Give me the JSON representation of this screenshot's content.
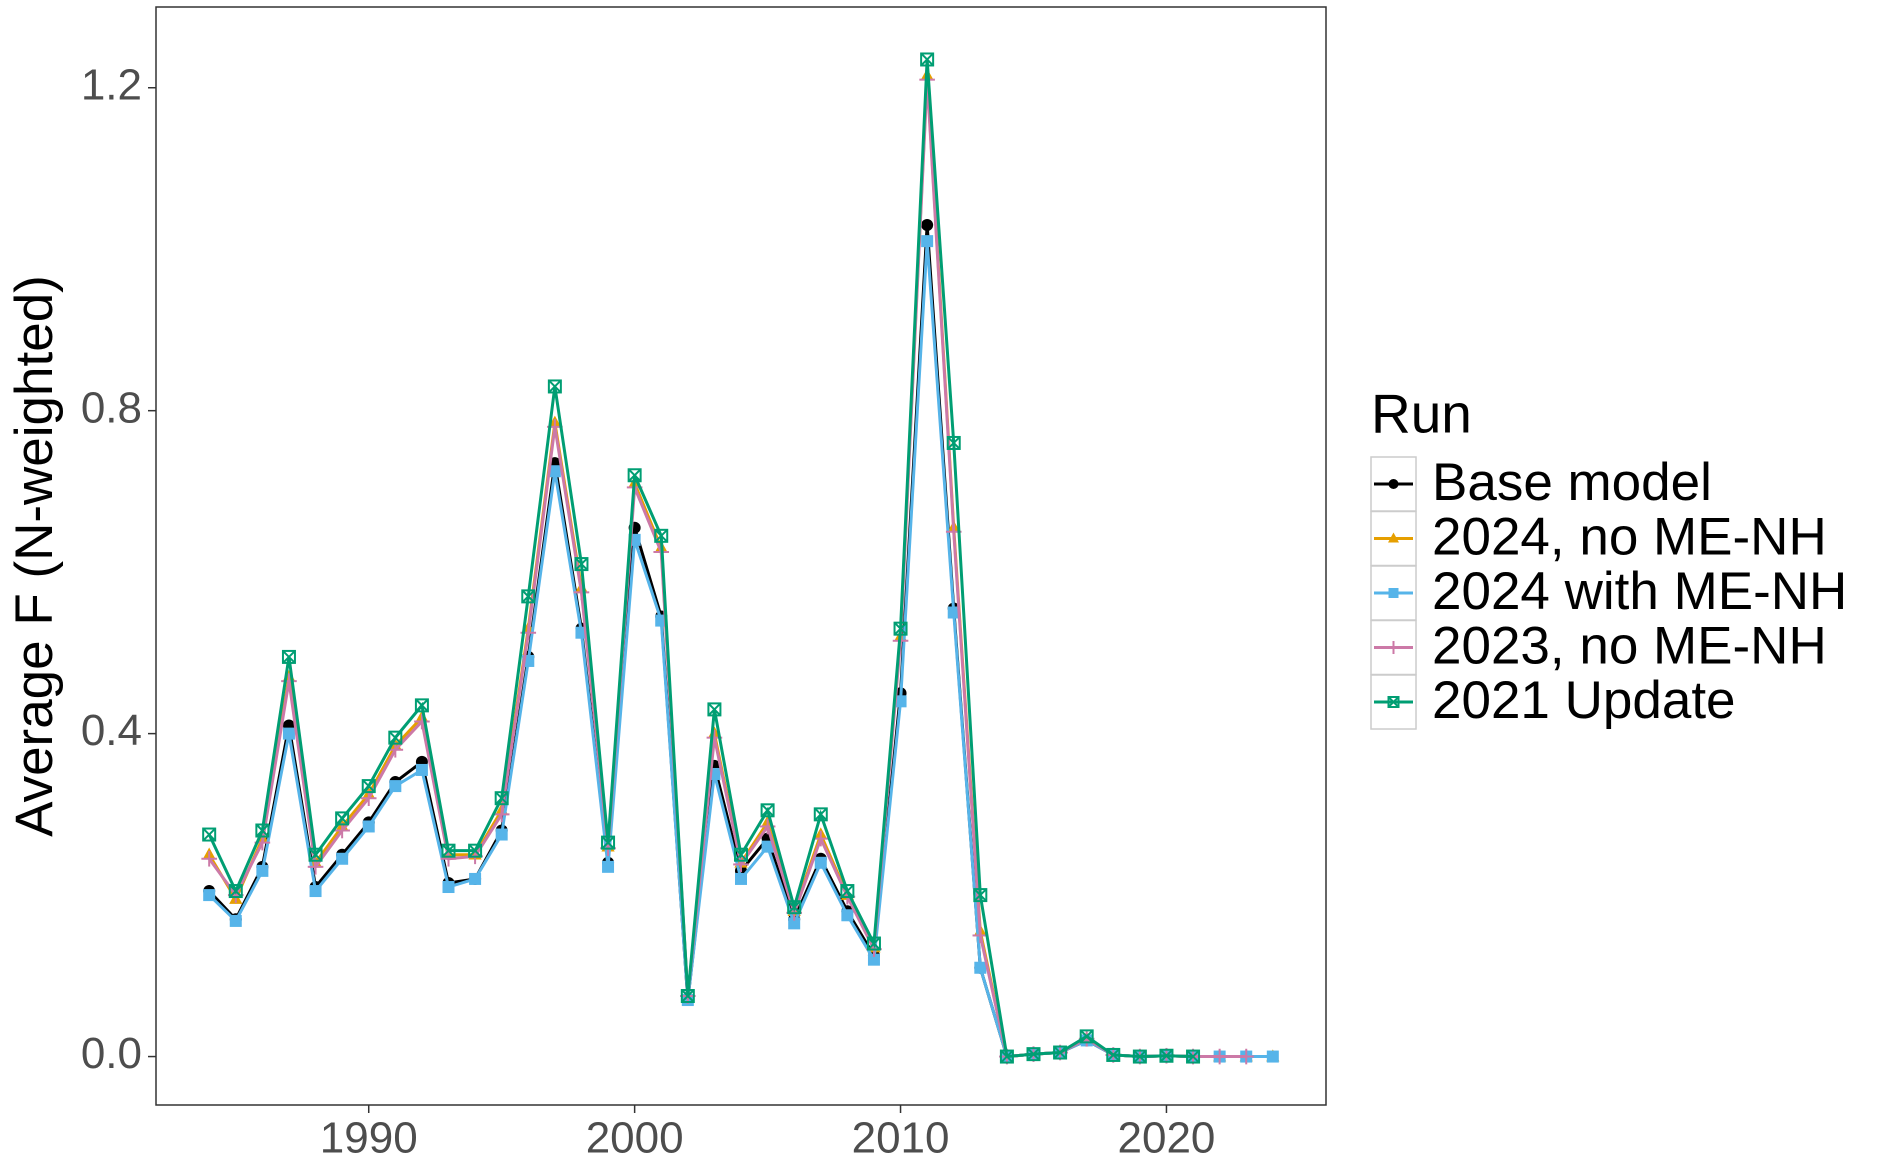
{
  "chart_data": {
    "type": "line",
    "y_label": "Average F (N-weighted)",
    "legend_title": "Run",
    "legend": "right",
    "grid": false,
    "x": [
      1984,
      1985,
      1986,
      1987,
      1988,
      1989,
      1990,
      1991,
      1992,
      1993,
      1994,
      1995,
      1996,
      1997,
      1998,
      1999,
      2000,
      2001,
      2002,
      2003,
      2004,
      2005,
      2006,
      2007,
      2008,
      2009,
      2010,
      2011,
      2012,
      2013,
      2014,
      2015,
      2016,
      2017,
      2018,
      2019,
      2020,
      2021,
      2022,
      2023,
      2024
    ],
    "xlim": [
      1982,
      2026
    ],
    "xticks": [
      1990,
      2000,
      2010,
      2020
    ],
    "ylim": [
      -0.06,
      1.3
    ],
    "yticks": [
      {
        "value": 0,
        "label": "0.0"
      },
      0.4,
      0.8,
      1.2
    ],
    "series": [
      {
        "name": "Base model",
        "color": "#000000",
        "marker": "circle",
        "values": [
          0.205,
          0.17,
          0.235,
          0.41,
          0.21,
          0.25,
          0.29,
          0.34,
          0.365,
          0.215,
          0.22,
          0.28,
          0.495,
          0.735,
          0.53,
          0.24,
          0.655,
          0.545,
          0.07,
          0.36,
          0.23,
          0.27,
          0.17,
          0.245,
          0.18,
          0.125,
          0.45,
          1.03,
          0.555,
          0.11,
          0,
          0.003,
          0.005,
          0.02,
          0.002,
          0,
          0.001,
          0,
          0,
          0,
          null
        ]
      },
      {
        "name": "2024, no ME-NH",
        "color": "#E69F00",
        "marker": "triangle",
        "values": [
          0.25,
          0.195,
          0.27,
          0.47,
          0.24,
          0.285,
          0.325,
          0.385,
          0.42,
          0.25,
          0.25,
          0.305,
          0.53,
          0.785,
          0.58,
          0.26,
          0.71,
          0.63,
          0.075,
          0.4,
          0.24,
          0.29,
          0.18,
          0.275,
          0.2,
          0.135,
          0.52,
          1.215,
          0.655,
          0.155,
          0,
          0.003,
          0.005,
          0.022,
          0.002,
          0,
          0.001,
          0,
          0,
          0,
          0
        ]
      },
      {
        "name": "2024 with ME-NH",
        "color": "#56B4E9",
        "marker": "square",
        "values": [
          0.2,
          0.168,
          0.23,
          0.4,
          0.205,
          0.245,
          0.285,
          0.335,
          0.355,
          0.21,
          0.22,
          0.275,
          0.49,
          0.725,
          0.525,
          0.235,
          0.64,
          0.54,
          0.07,
          0.35,
          0.22,
          0.26,
          0.165,
          0.24,
          0.175,
          0.12,
          0.44,
          1.01,
          0.55,
          0.11,
          0,
          0.003,
          0.005,
          0.02,
          0.002,
          0,
          0.001,
          0,
          0,
          0,
          0
        ]
      },
      {
        "name": "2023, no ME-NH",
        "color": "#CC79A7",
        "marker": "plus",
        "values": [
          0.245,
          0.2,
          0.265,
          0.465,
          0.235,
          0.28,
          0.32,
          0.38,
          0.415,
          0.245,
          0.248,
          0.3,
          0.525,
          0.78,
          0.575,
          0.258,
          0.705,
          0.625,
          0.075,
          0.395,
          0.238,
          0.285,
          0.178,
          0.27,
          0.198,
          0.133,
          0.515,
          1.21,
          0.65,
          0.15,
          0,
          0.003,
          0.005,
          0.022,
          0.002,
          0,
          0.001,
          0,
          0,
          0,
          null
        ]
      },
      {
        "name": "2021 Update",
        "color": "#009E73",
        "marker": "boxx",
        "values": [
          0.275,
          0.205,
          0.28,
          0.495,
          0.25,
          0.295,
          0.335,
          0.395,
          0.435,
          0.255,
          0.255,
          0.32,
          0.57,
          0.83,
          0.61,
          0.265,
          0.72,
          0.645,
          0.075,
          0.43,
          0.25,
          0.305,
          0.185,
          0.3,
          0.205,
          0.14,
          0.53,
          1.235,
          0.76,
          0.2,
          0,
          0.003,
          0.005,
          0.025,
          0.002,
          0,
          0.001,
          0,
          null,
          null,
          null
        ]
      }
    ]
  }
}
